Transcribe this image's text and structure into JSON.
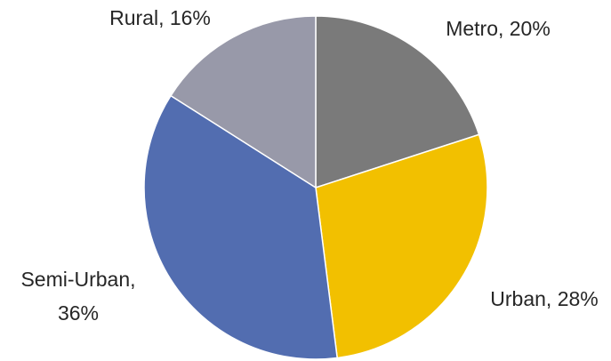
{
  "chart_data": {
    "type": "pie",
    "title": "",
    "legend": "none",
    "slices": [
      {
        "label": "Metro",
        "value": 20,
        "pct_text": "20%",
        "color": "#7a7a7a"
      },
      {
        "label": "Urban",
        "value": 28,
        "pct_text": "28%",
        "color": "#f2c000"
      },
      {
        "label": "Semi-Urban",
        "value": 36,
        "pct_text": "36%",
        "color": "#526db0"
      },
      {
        "label": "Rural",
        "value": 16,
        "pct_text": "16%",
        "color": "#9899a9"
      }
    ]
  }
}
